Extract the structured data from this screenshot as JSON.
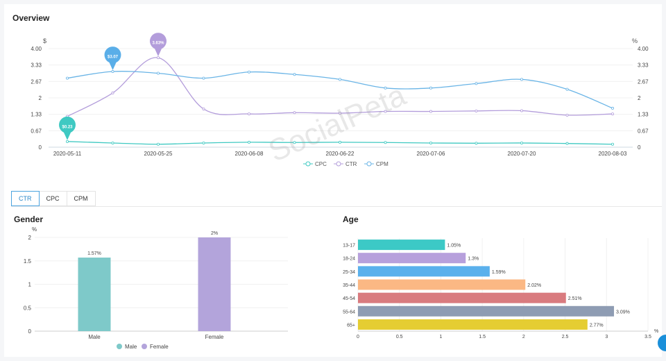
{
  "overview": {
    "title": "Overview",
    "left_unit": "$",
    "right_unit": "%",
    "yticks": [
      "4.00",
      "3.33",
      "2.67",
      "2",
      "1.33",
      "0.67",
      "0"
    ],
    "xticks": [
      "2020-05-11",
      "2020-05-25",
      "2020-06-08",
      "2020-06-22",
      "2020-07-06",
      "2020-07-20",
      "2020-08-03"
    ]
  },
  "tabs": [
    "CTR",
    "CPC",
    "CPM"
  ],
  "active_tab": "CTR",
  "gender": {
    "title": "Gender"
  },
  "age": {
    "title": "Age"
  },
  "watermark": "SocialPeta",
  "colors": {
    "cpc": "#3fc9c2",
    "ctr": "#b39ddb",
    "cpm": "#69b4e6"
  },
  "chart_data": [
    {
      "type": "line",
      "title": "Overview",
      "x": [
        "2020-05-11",
        "2020-05-18",
        "2020-05-25",
        "2020-06-01",
        "2020-06-08",
        "2020-06-15",
        "2020-06-22",
        "2020-06-29",
        "2020-07-06",
        "2020-07-13",
        "2020-07-20",
        "2020-07-27",
        "2020-08-03"
      ],
      "ylim": [
        0,
        4
      ],
      "legend": "bottom",
      "series": [
        {
          "name": "CPC",
          "axis": "left",
          "color": "#3fc9c2",
          "values": [
            0.23,
            0.17,
            0.12,
            0.17,
            0.2,
            0.19,
            0.2,
            0.19,
            0.17,
            0.16,
            0.17,
            0.15,
            0.12
          ]
        },
        {
          "name": "CTR",
          "axis": "right",
          "color": "#b39ddb",
          "values": [
            1.25,
            2.2,
            3.63,
            1.55,
            1.35,
            1.4,
            1.38,
            1.45,
            1.45,
            1.47,
            1.48,
            1.3,
            1.35
          ]
        },
        {
          "name": "CPM",
          "axis": "left",
          "color": "#69b4e6",
          "values": [
            2.8,
            3.07,
            3.0,
            2.8,
            3.05,
            2.95,
            2.75,
            2.4,
            2.4,
            2.58,
            2.75,
            2.35,
            1.58
          ]
        }
      ],
      "markers": [
        {
          "series": "CPM",
          "index": 1,
          "label": "$3.07",
          "color": "#5aaee8"
        },
        {
          "series": "CTR",
          "index": 2,
          "label": "3.63%",
          "color": "#b39ddb"
        },
        {
          "series": "CPC",
          "index": 0,
          "label": "$0.23",
          "color": "#3fc9c2"
        }
      ]
    },
    {
      "type": "bar",
      "title": "Gender",
      "ylabel": "%",
      "categories": [
        "Male",
        "Female"
      ],
      "values": [
        1.57,
        2
      ],
      "data_labels": [
        "1.57%",
        "2%"
      ],
      "colors": [
        "#7ec9c9",
        "#b3a4db"
      ],
      "ylim": [
        0,
        2
      ],
      "yticks": [
        "2",
        "1.5",
        "1",
        "0.5",
        "0"
      ],
      "legend": "bottom"
    },
    {
      "type": "bar",
      "orientation": "horizontal",
      "title": "Age",
      "xlabel": "%",
      "categories": [
        "13-17",
        "18-24",
        "25-34",
        "35-44",
        "45-54",
        "55-64",
        "65+"
      ],
      "values": [
        1.05,
        1.3,
        1.59,
        2.02,
        2.51,
        3.09,
        2.77
      ],
      "data_labels": [
        "1.05%",
        "1.3%",
        "1.59%",
        "2.02%",
        "2.51%",
        "3.09%",
        "2.77%"
      ],
      "colors": [
        "#3cc9c6",
        "#b7a0dc",
        "#5ab0ec",
        "#fbb884",
        "#d97b7f",
        "#8e9cb3",
        "#e5cd32"
      ],
      "xlim": [
        0,
        3.5
      ],
      "xticks": [
        "0",
        "0.5",
        "1",
        "1.5",
        "2",
        "2.5",
        "3",
        "3.5"
      ]
    }
  ]
}
